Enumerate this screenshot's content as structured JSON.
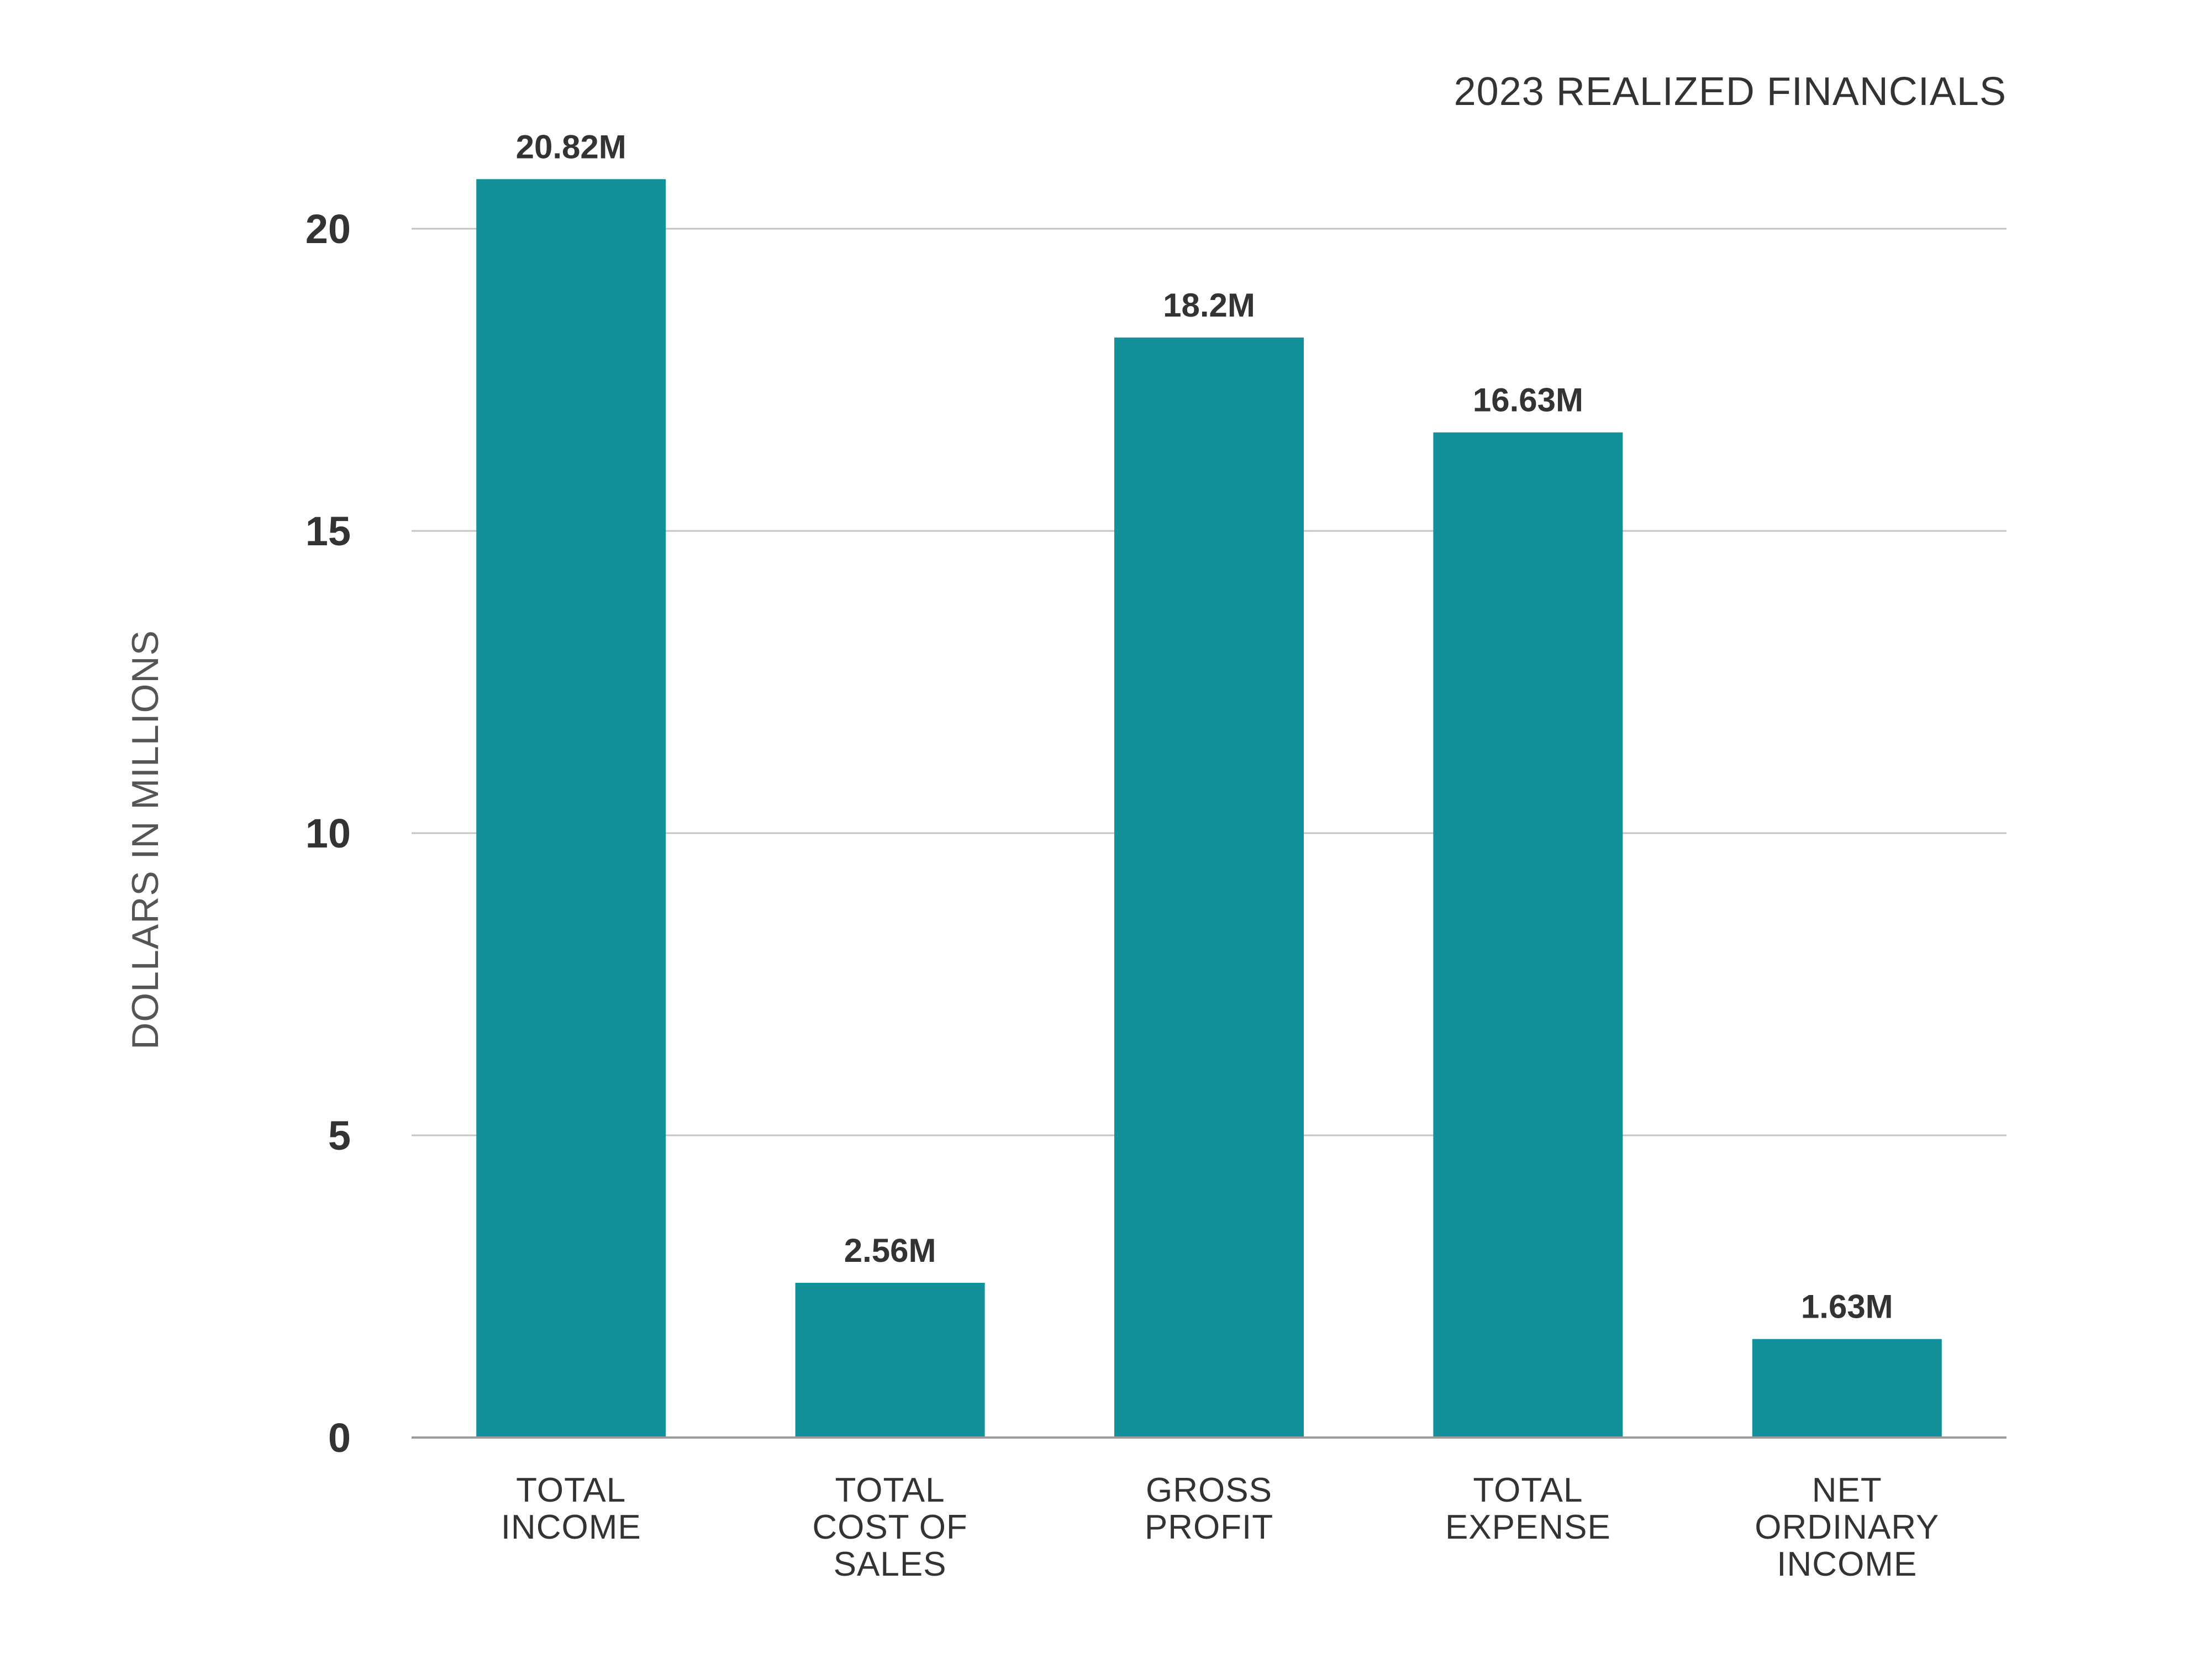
{
  "chart_data": {
    "type": "bar",
    "title": "2023 REALIZED FINANCIALS",
    "ylabel": "DOLLARS IN MILLIONS",
    "xlabel": "",
    "categories": [
      [
        "TOTAL",
        "INCOME"
      ],
      [
        "TOTAL",
        "COST OF",
        "SALES"
      ],
      [
        "GROSS",
        "PROFIT"
      ],
      [
        "TOTAL",
        "EXPENSE"
      ],
      [
        "NET",
        "ORDINARY",
        "INCOME"
      ]
    ],
    "values": [
      20.82,
      2.56,
      18.2,
      16.63,
      1.63
    ],
    "data_labels": [
      "20.82M",
      "2.56M",
      "18.2M",
      "16.63M",
      "1.63M"
    ],
    "yticks": [
      0,
      5,
      10,
      15,
      20
    ],
    "ylim": [
      0,
      20
    ],
    "grid": true,
    "legend": "none",
    "colors": {
      "bar": "#12919A",
      "grid": "#C4C4C4",
      "axis": "#9A9A9A",
      "text": "#333333",
      "axis_title": "#555555"
    }
  }
}
